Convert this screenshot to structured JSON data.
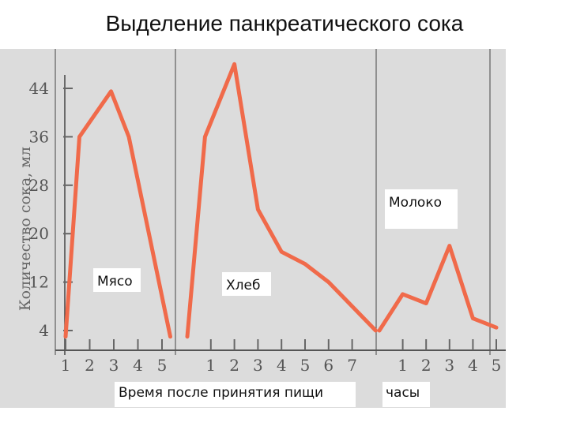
{
  "slide": {
    "title": "Выделение панкреатического сока"
  },
  "chart_data": {
    "type": "line",
    "ylabel": "Количество сока, мл",
    "xlabel": "Время после принятия пищи",
    "xunit": "часы",
    "yticks": [
      4,
      12,
      20,
      28,
      36,
      44
    ],
    "panels": [
      {
        "label": "Мясо",
        "x": [
          0.7,
          1.4,
          3.0,
          3.9,
          6.0
        ],
        "xticks": [
          "1",
          "2",
          "3",
          "4",
          "5"
        ],
        "values": [
          3,
          36,
          43.5,
          36,
          3
        ]
      },
      {
        "label": "Хлеб",
        "x": [
          0,
          0.75,
          2.0,
          3.0,
          4.0,
          5.0,
          6.0,
          8.0
        ],
        "xticks": [
          "1",
          "2",
          "3",
          "4",
          "5",
          "6",
          "7"
        ],
        "values": [
          3,
          36,
          48,
          24,
          17,
          15,
          12,
          4
        ]
      },
      {
        "label": "Молоко",
        "x": [
          0,
          1.0,
          2.0,
          3.0,
          4.0,
          5.0
        ],
        "xticks": [
          "1",
          "2",
          "3",
          "4",
          "5"
        ],
        "values": [
          4,
          10,
          8.5,
          18,
          6,
          4.5
        ]
      }
    ]
  }
}
